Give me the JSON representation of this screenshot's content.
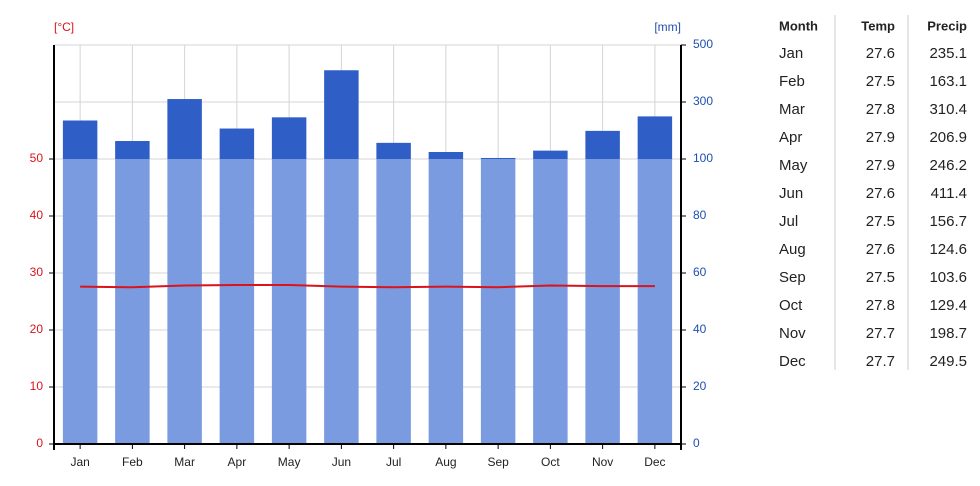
{
  "chart_data": {
    "type": "bar_line",
    "y_label": "[°C]",
    "y2_label": "[mm]",
    "categories": [
      "Jan",
      "Feb",
      "Mar",
      "Apr",
      "May",
      "Jun",
      "Jul",
      "Aug",
      "Sep",
      "Oct",
      "Nov",
      "Dec"
    ],
    "series": [
      {
        "name": "Temp",
        "type": "line",
        "axis": "y",
        "color": "#d9141b",
        "values": [
          27.6,
          27.5,
          27.8,
          27.9,
          27.9,
          27.6,
          27.5,
          27.6,
          27.5,
          27.8,
          27.7,
          27.7
        ]
      },
      {
        "name": "Precip",
        "type": "bar",
        "axis": "y2",
        "color": "#7b9be0",
        "overflow_color": "#2f5fc6",
        "values": [
          235.1,
          163.1,
          310.4,
          206.9,
          246.2,
          411.4,
          156.7,
          124.6,
          103.6,
          129.4,
          198.7,
          249.5
        ]
      }
    ],
    "ylim": [
      0,
      70
    ],
    "yticks": [
      0,
      10,
      20,
      30,
      40,
      50
    ],
    "y_color": "#d9141b",
    "y2lim": [
      0,
      500
    ],
    "y2ticks": [
      0,
      20,
      40,
      60,
      80,
      100,
      300,
      500
    ],
    "y2_color": "#1f4fae",
    "grid": true
  },
  "table": {
    "columns": [
      "Month",
      "Temp",
      "Precip"
    ]
  }
}
